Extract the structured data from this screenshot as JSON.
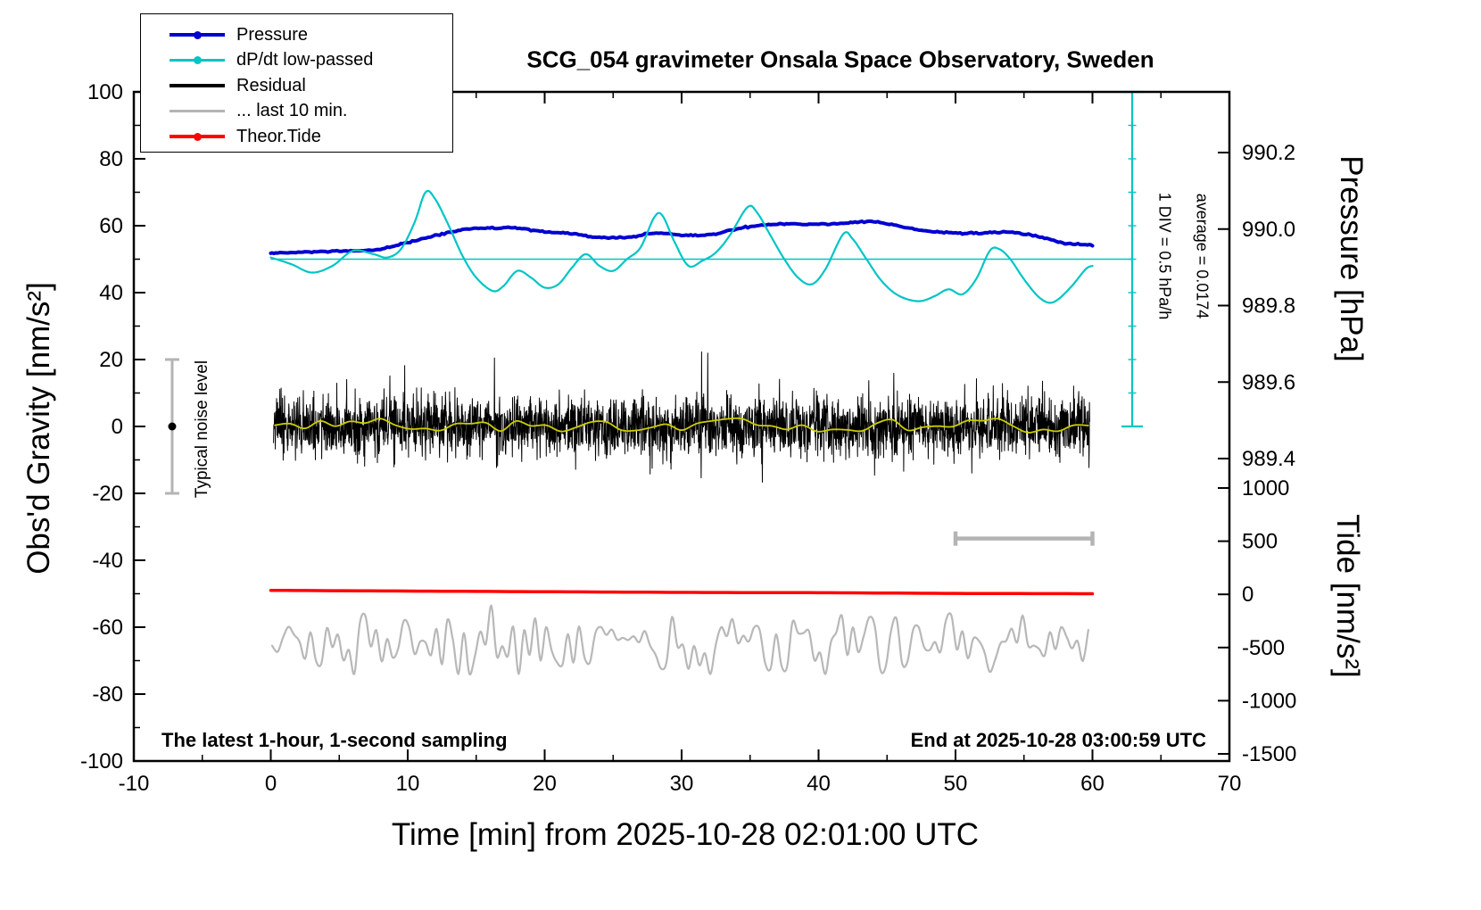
{
  "annotations": {
    "typical_noise_label": "Typical noise level",
    "div_label": "1 DIV = 0.5 hPa/h",
    "average_label": "average = 0.0174",
    "sampling_note": "The latest 1-hour, 1-second sampling",
    "end_note": "End at 2025-10-28 03:00:59 UTC"
  },
  "legend": {
    "items": [
      {
        "label": "Pressure",
        "color": "#0000d0",
        "marker": true
      },
      {
        "label": "dP/dt low-passed",
        "color": "#00c5c5",
        "marker": true
      },
      {
        "label": "Residual",
        "color": "#000000",
        "marker": false
      },
      {
        "label": "... last 10 min.",
        "color": "#b4b4b4",
        "marker": false
      },
      {
        "label": "Theor.Tide",
        "color": "#ff0000",
        "marker": true
      }
    ]
  },
  "chart_data": {
    "type": "line",
    "title": "SCG_054 gravimeter Onsala Space Observatory, Sweden",
    "xlabel": "Time [min] from 2025-10-28 02:01:00 UTC",
    "ylabel_left": "Obs'd Gravity [nm/s²]",
    "ylabel_right_top": "Pressure [hPa]",
    "ylabel_right_bottom": "Tide [nm/s²]",
    "xlim": [
      -10,
      70
    ],
    "ylim_left": [
      -100,
      100
    ],
    "x_major_ticks": [
      -10,
      0,
      10,
      20,
      30,
      40,
      50,
      60,
      70
    ],
    "x_minor_step": 5,
    "y_left_major_ticks": [
      100,
      80,
      60,
      40,
      20,
      0,
      -20,
      -40,
      -60,
      -80,
      -100
    ],
    "y_left_minor_step": 10,
    "pressure_ticks": [
      990.2,
      990.0,
      989.8,
      989.6,
      989.4
    ],
    "tide_ticks": [
      1000,
      500,
      0,
      -500,
      -1000,
      -1500
    ],
    "dpdt_zero_line": 50,
    "seed": 12345,
    "series": [
      {
        "id": "pressure",
        "name": "Pressure",
        "color": "#0000d0",
        "width": 4,
        "kind": "smooth",
        "jitter": 0.12,
        "x": [
          0,
          2,
          4,
          6,
          8,
          10,
          12,
          14,
          16,
          18,
          20,
          22,
          24,
          26,
          28,
          30,
          32,
          34,
          36,
          38,
          40,
          42,
          44,
          46,
          48,
          50,
          52,
          54,
          56,
          58,
          60
        ],
        "y": [
          51.8,
          52.0,
          52.3,
          52.4,
          53.0,
          55.0,
          57.0,
          58.8,
          59.3,
          59.2,
          58.2,
          57.5,
          56.5,
          56.5,
          57.8,
          57.2,
          57.3,
          59.0,
          60.2,
          60.6,
          60.4,
          60.8,
          61.2,
          59.8,
          58.4,
          57.8,
          57.8,
          58.0,
          56.8,
          54.8,
          54.3
        ]
      },
      {
        "id": "dpdt",
        "name": "dP/dt low-passed",
        "color": "#00c5c5",
        "width": 2.2,
        "kind": "smooth",
        "x": [
          0,
          1.5,
          3,
          4.5,
          6,
          7.5,
          8.5,
          9.5,
          10.5,
          11.3,
          12,
          13,
          14,
          15,
          16.2,
          17,
          18,
          19,
          20,
          21,
          22,
          23,
          24,
          25,
          26,
          27,
          28,
          28.6,
          29.5,
          30.5,
          31.5,
          32.5,
          33.5,
          34.8,
          35.5,
          36.5,
          37.5,
          38.5,
          39.5,
          40.5,
          41.8,
          42.5,
          43.5,
          44.5,
          45.5,
          46.5,
          47.5,
          48.5,
          49.5,
          50.5,
          51.5,
          52.5,
          53.2,
          54,
          55,
          56,
          56.8,
          57.5,
          58.5,
          59.5,
          60
        ],
        "y": [
          50.5,
          48.5,
          46,
          48,
          52.5,
          51.5,
          50.5,
          53,
          61,
          70,
          68,
          60,
          51,
          44.5,
          40.5,
          42,
          46.5,
          44.5,
          41.5,
          42.5,
          47.5,
          51.5,
          48,
          46.5,
          50,
          53.5,
          62.5,
          63,
          55,
          48,
          49.5,
          52,
          57,
          65.5,
          64,
          57,
          50,
          44.5,
          42.5,
          47,
          57.5,
          56,
          50,
          44,
          40,
          38,
          37.5,
          39,
          41,
          39.5,
          44,
          52.5,
          53,
          50,
          44,
          39,
          37,
          38,
          42,
          47,
          48
        ]
      },
      {
        "id": "residual",
        "name": "Residual",
        "color": "#000000",
        "width": 1,
        "kind": "noise",
        "baseline": 0,
        "std": 4.4,
        "spike_prob": 0.006,
        "spike_min": 7,
        "spike_max": 16,
        "clamp": 23,
        "x0": 0.2,
        "x1": 59.8,
        "points": 3200
      },
      {
        "id": "residual-smoothed",
        "name": "Residual smoothed",
        "color": "#cccc00",
        "width": 1.8,
        "kind": "smooth-noise",
        "baseline": 0.2,
        "std": 1.3,
        "step": 1.1,
        "x0": 0.3,
        "x1": 59.7,
        "clamp": 3.2
      },
      {
        "id": "theor-tide",
        "name": "Theor.Tide",
        "color": "#ff0000",
        "width": 3.5,
        "kind": "smooth",
        "x": [
          0,
          10,
          20,
          30,
          40,
          50,
          60
        ],
        "y": [
          -49.0,
          -49.2,
          -49.4,
          -49.6,
          -49.7,
          -49.9,
          -50.0
        ]
      },
      {
        "id": "residual-last-10min",
        "name": "... last 10 min.",
        "color": "#b8b8b8",
        "width": 2.2,
        "kind": "smooth-noise",
        "baseline": -65,
        "std": 4.6,
        "step": 0.4,
        "x0": 0.1,
        "x1": 60,
        "clamp_low": -74,
        "clamp_high": -56.5,
        "spike": {
          "x": 16.2,
          "y": -53.5
        }
      }
    ],
    "noise_level_bar": {
      "x": -7.2,
      "y_low": -20,
      "y_high": 20,
      "dot_y": 0,
      "color": "#b4b4b4"
    },
    "gray_time_scale_bar": {
      "x0": 50,
      "x1": 60,
      "y": -33.5,
      "color": "#b4b4b4"
    },
    "cyan_div_ruler": {
      "x": 62.9,
      "y0": 0,
      "y1": 100,
      "tick_step": 10,
      "color": "#00c5c5"
    }
  }
}
